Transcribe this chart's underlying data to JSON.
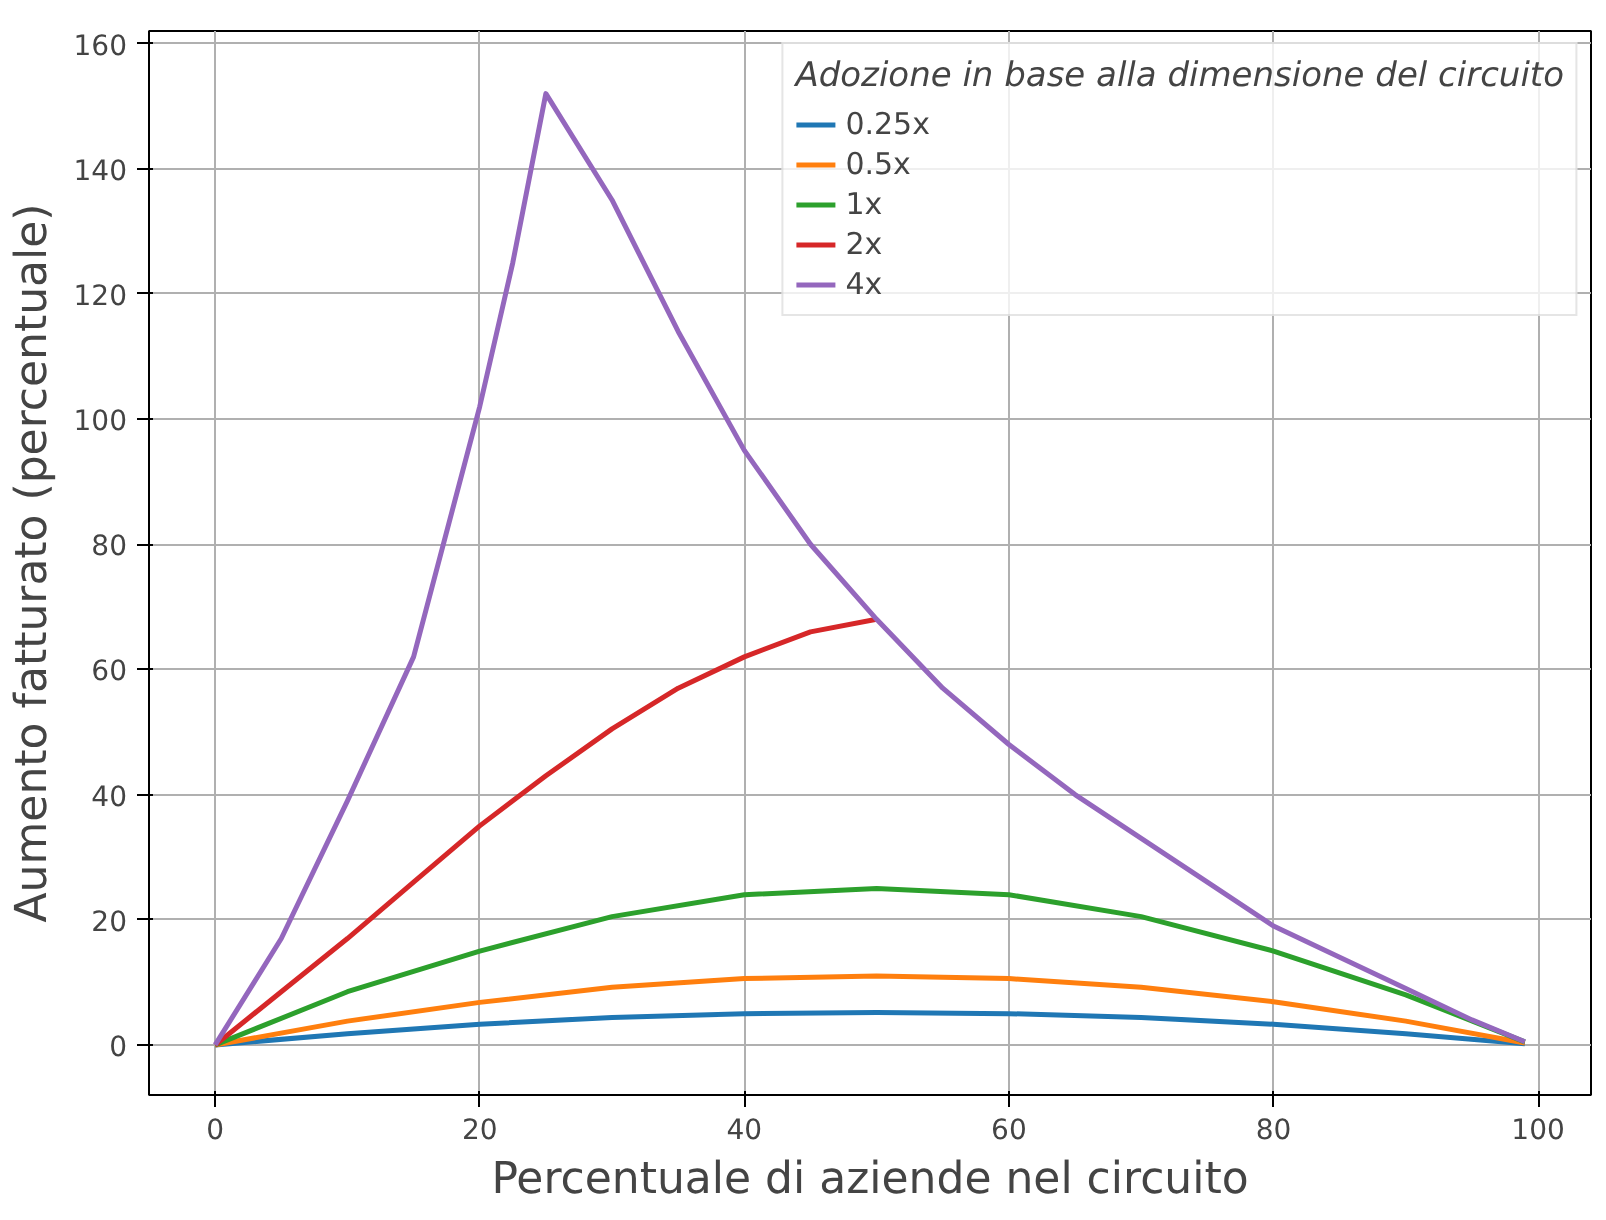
{
  "chart_data": {
    "type": "line",
    "xlabel": "Percentuale di aziende nel circuito",
    "ylabel": "Aumento fatturato (percentuale)",
    "legend_title": "Adozione in base alla dimensione del circuito",
    "legend": "top right",
    "grid": true,
    "xlim": [
      -5,
      104
    ],
    "ylim": [
      -8,
      162
    ],
    "xticks": [
      0,
      20,
      40,
      60,
      80,
      100
    ],
    "yticks": [
      0,
      20,
      40,
      60,
      80,
      100,
      120,
      140,
      160
    ],
    "series": [
      {
        "name": "0.25x",
        "color": "#1f77b4",
        "x": [
          0,
          10,
          20,
          30,
          40,
          50,
          60,
          70,
          80,
          90,
          99
        ],
        "values": [
          0,
          1.8,
          3.3,
          4.4,
          5,
          5.2,
          5,
          4.4,
          3.3,
          1.8,
          0.2
        ]
      },
      {
        "name": "0.5x",
        "color": "#ff7f0e",
        "x": [
          0,
          10,
          20,
          30,
          40,
          50,
          60,
          70,
          80,
          90,
          99
        ],
        "values": [
          0,
          3.8,
          6.8,
          9.2,
          10.6,
          11,
          10.6,
          9.2,
          6.9,
          3.8,
          0.3
        ]
      },
      {
        "name": "1x",
        "color": "#2ca02c",
        "x": [
          0,
          10,
          20,
          30,
          40,
          50,
          60,
          70,
          80,
          90,
          99
        ],
        "values": [
          0,
          8.5,
          15,
          20.5,
          24,
          25,
          24,
          20.5,
          15,
          8,
          0.5
        ]
      },
      {
        "name": "2x",
        "color": "#d62728",
        "x": [
          0,
          5,
          10,
          15,
          20,
          25,
          30,
          35,
          40,
          45,
          50
        ],
        "values": [
          0,
          8.5,
          17,
          26,
          35,
          43,
          50.5,
          57,
          62,
          66,
          68
        ]
      },
      {
        "name": "4x",
        "color": "#9467bd",
        "x": [
          0,
          5,
          10,
          15,
          20,
          22.5,
          25,
          30,
          35,
          40,
          45,
          50,
          55,
          60,
          65,
          70,
          75,
          80,
          85,
          90,
          95,
          99
        ],
        "values": [
          0,
          17,
          39,
          62,
          102,
          125,
          152,
          135,
          114,
          95,
          80,
          68,
          57,
          48,
          40,
          33,
          26,
          19,
          14,
          9,
          4,
          0.5
        ]
      }
    ]
  }
}
